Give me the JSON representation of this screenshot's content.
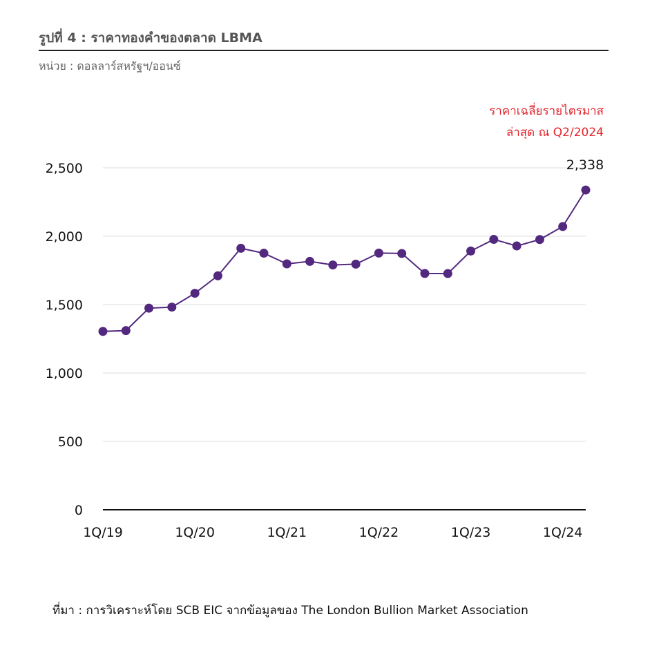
{
  "header": {
    "title": "รูปที่ 4 : ราคาทองคำของตลาด LBMA",
    "unit": "หน่วย : ดอลลาร์สหรัฐฯ/ออนซ์"
  },
  "annotation": {
    "line1": "ราคาเฉลี่ยรายไตรมาส",
    "line2": "ล่าสุด ณ Q2/2024"
  },
  "source": "ที่มา : การวิเคราะห์โดย SCB EIC จากข้อมูลของ The London Bullion Market Association",
  "colors": {
    "series": "#53287f",
    "annotation": "#e3242b",
    "grid": "#dddddd",
    "axis": "#111111"
  },
  "chart_data": {
    "type": "line",
    "title": "รูปที่ 4 : ราคาทองคำของตลาด LBMA",
    "ylabel": "หน่วย : ดอลลาร์สหรัฐฯ/ออนซ์",
    "ylim": [
      0,
      2500
    ],
    "yticks": [
      "0",
      "500",
      "1,000",
      "1,500",
      "2,000",
      "2,500"
    ],
    "grid": true,
    "x": [
      "1Q/19",
      "2Q/19",
      "3Q/19",
      "4Q/19",
      "1Q/20",
      "2Q/20",
      "3Q/20",
      "4Q/20",
      "1Q/21",
      "2Q/21",
      "3Q/21",
      "4Q/21",
      "1Q/22",
      "2Q/22",
      "3Q/22",
      "4Q/22",
      "1Q/23",
      "2Q/23",
      "3Q/23",
      "4Q/23",
      "1Q/24",
      "2Q/24"
    ],
    "xtick_labels": [
      "1Q/19",
      "1Q/20",
      "1Q/21",
      "1Q/22",
      "1Q/23",
      "1Q/24"
    ],
    "series": [
      {
        "values": [
          1304,
          1310,
          1474,
          1482,
          1583,
          1711,
          1912,
          1876,
          1798,
          1816,
          1790,
          1796,
          1877,
          1874,
          1728,
          1727,
          1892,
          1977,
          1929,
          1976,
          2071,
          2338
        ]
      }
    ],
    "last_value_label": "2,338"
  }
}
